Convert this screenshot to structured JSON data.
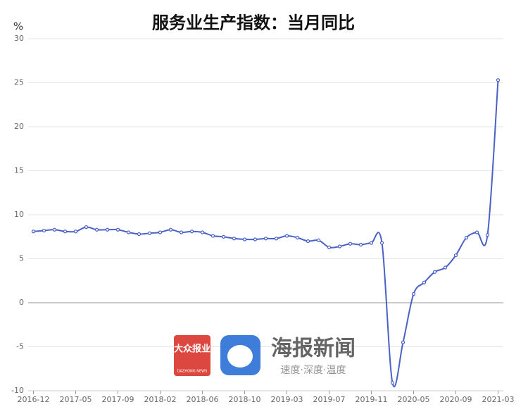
{
  "chart_data": {
    "type": "line",
    "title": "服务业生产指数：当月同比",
    "y_unit": "%",
    "categories": [
      "2016-12",
      null,
      null,
      null,
      "2017-05",
      null,
      null,
      null,
      "2017-09",
      null,
      null,
      null,
      "2018-02",
      null,
      null,
      null,
      "2018-06",
      null,
      null,
      null,
      "2018-10",
      null,
      null,
      null,
      "2019-03",
      null,
      null,
      null,
      "2019-07",
      null,
      null,
      null,
      "2019-11",
      null,
      null,
      null,
      "2020-05",
      null,
      null,
      null,
      "2020-09",
      null,
      null,
      null,
      "2021-03"
    ],
    "series": [
      {
        "name": "服务业生产指数：当月同比",
        "color": "#4a61c6",
        "values": [
          8.1,
          8.2,
          8.3,
          8.1,
          8.1,
          8.6,
          8.3,
          8.3,
          8.3,
          8.0,
          7.8,
          7.9,
          8.0,
          8.3,
          8.0,
          8.1,
          8.0,
          7.6,
          7.5,
          7.3,
          7.2,
          7.2,
          7.3,
          7.3,
          7.6,
          7.4,
          7.0,
          7.1,
          6.3,
          6.4,
          6.7,
          6.6,
          6.8,
          6.8,
          -9.1,
          -4.5,
          1.0,
          2.3,
          3.5,
          4.0,
          5.4,
          7.4,
          8.0,
          7.7,
          25.3
        ]
      }
    ],
    "ylim": [
      -10,
      30
    ],
    "yticks": [
      -10,
      -5,
      0,
      5,
      10,
      15,
      20,
      25,
      30
    ],
    "grid": true,
    "smooth": true,
    "watermark": {
      "logo1": "大众报业",
      "logo1_sub": "DAZHONG NEWS",
      "logo2": "海报新闻",
      "logo2_sub": "速度·深度·温度"
    }
  }
}
